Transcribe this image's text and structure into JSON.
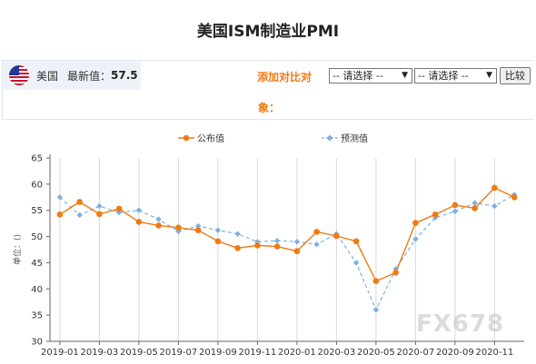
{
  "header": {
    "title": "美国ISM制造业PMI"
  },
  "info": {
    "flag_icon": "us-flag-icon",
    "country": "美国",
    "latest_label": "最新值：",
    "latest_value": "57.5",
    "compare_label_line1": "添加对比对",
    "compare_label_line2": "象：",
    "select1_value": "-- 请选择 --",
    "select2_value": "-- 请选择 --",
    "compare_button": "比较"
  },
  "watermark": "FX678",
  "colors": {
    "published": "#f07a12",
    "forecast": "#7db0e0",
    "axis": "#666666",
    "grid": "#d9d9d9"
  },
  "chart_data": {
    "type": "line",
    "title": "美国ISM制造业PMI",
    "ylabel": "单位：()",
    "ylim": [
      30,
      65
    ],
    "yticks": [
      30,
      35,
      40,
      45,
      50,
      55,
      60,
      65
    ],
    "x": [
      "2019-01",
      "2019-02",
      "2019-03",
      "2019-04",
      "2019-05",
      "2019-06",
      "2019-07",
      "2019-08",
      "2019-09",
      "2019-10",
      "2019-11",
      "2019-12",
      "2020-01",
      "2020-02",
      "2020-03",
      "2020-04",
      "2020-05",
      "2020-06",
      "2020-07",
      "2020-08",
      "2020-09",
      "2020-10",
      "2020-11",
      "2020-12"
    ],
    "xtick_labels": [
      "2019-01",
      "2019-03",
      "2019-05",
      "2019-07",
      "2019-09",
      "2019-11",
      "2020-01",
      "2020-03",
      "2020-05",
      "2020-07",
      "2020-09",
      "2020-11"
    ],
    "series": [
      {
        "name": "公布值",
        "style": "solid",
        "marker": "circle",
        "values": [
          54.2,
          56.6,
          54.3,
          55.3,
          52.8,
          52.1,
          51.7,
          51.2,
          49.1,
          47.8,
          48.3,
          48.1,
          47.2,
          50.9,
          50.1,
          49.1,
          41.5,
          43.1,
          52.6,
          54.2,
          56.0,
          55.4,
          59.3,
          57.5
        ]
      },
      {
        "name": "预测值",
        "style": "dashed",
        "marker": "diamond",
        "values": [
          57.5,
          54.1,
          55.8,
          54.6,
          55.0,
          53.3,
          51.0,
          52.0,
          51.2,
          50.5,
          49.0,
          49.2,
          49.0,
          48.5,
          50.5,
          45.0,
          36.0,
          43.8,
          49.5,
          53.6,
          54.8,
          56.4,
          55.8,
          58.0
        ]
      }
    ],
    "legend_position": "top-center",
    "grid": {
      "vertical": true,
      "horizontal": false
    }
  }
}
